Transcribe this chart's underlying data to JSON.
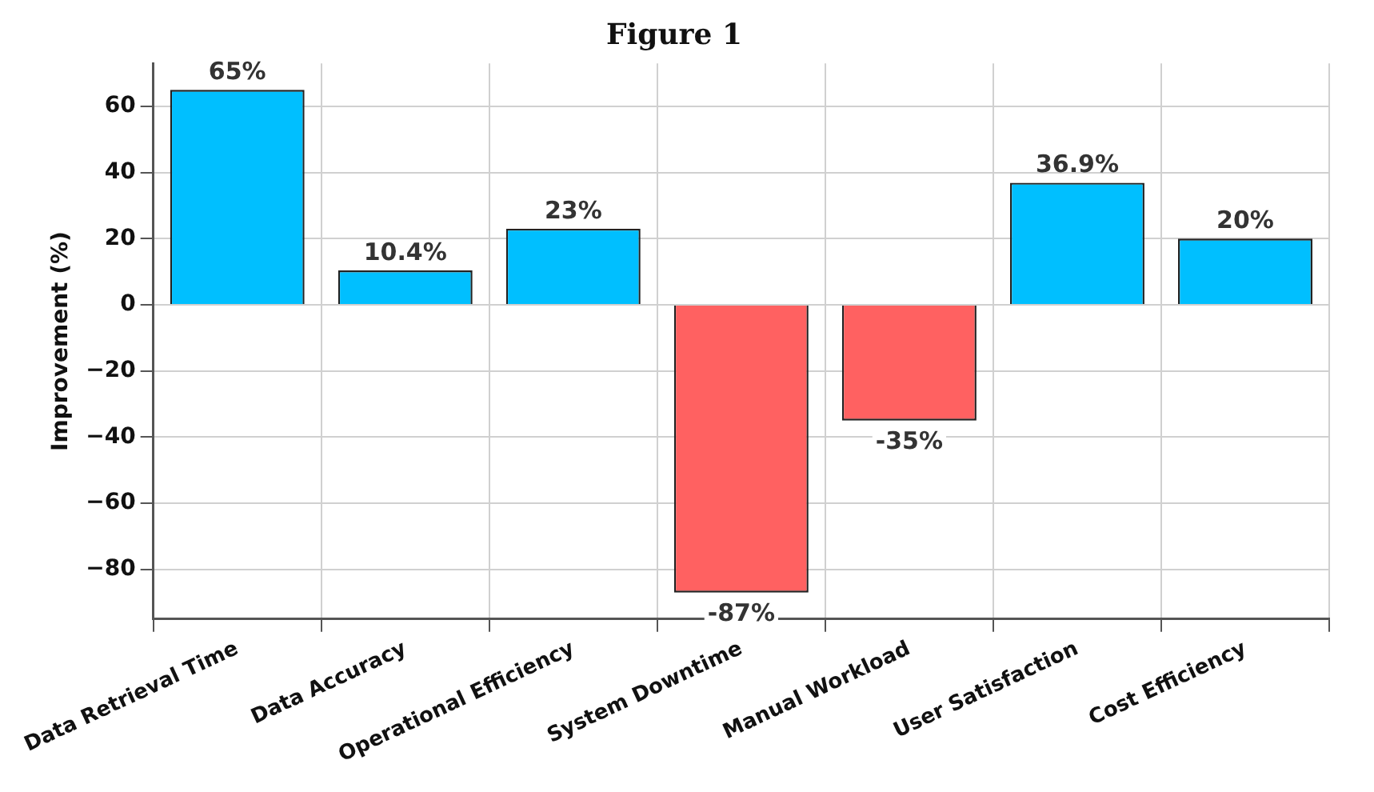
{
  "chart_data": {
    "type": "bar",
    "title": "Figure 1",
    "ylabel": "Improvement (%)",
    "categories": [
      "Data Retrieval Time",
      "Data Accuracy",
      "Operational Efficiency",
      "System Downtime",
      "Manual Workload",
      "User Satisfaction",
      "Cost Efficiency"
    ],
    "values": [
      65,
      10.4,
      23,
      -87,
      -35,
      36.9,
      20
    ],
    "colors": [
      "#00bfff",
      "#00bfff",
      "#00bfff",
      "#ff6161",
      "#ff6161",
      "#00bfff",
      "#00bfff"
    ],
    "value_labels": [
      "65%",
      "10.4%",
      "23%",
      "-87%",
      "-35%",
      "36.9%",
      "20%"
    ],
    "ylim": [
      -95,
      73
    ],
    "yticks": [
      {
        "value": 60,
        "label": "60"
      },
      {
        "value": 40,
        "label": "40"
      },
      {
        "value": 20,
        "label": "20"
      },
      {
        "value": 0,
        "label": "0"
      },
      {
        "value": -20,
        "label": "−20"
      },
      {
        "value": -40,
        "label": "−40"
      },
      {
        "value": -60,
        "label": "−60"
      },
      {
        "value": -80,
        "label": "−80"
      }
    ],
    "grid": true
  }
}
